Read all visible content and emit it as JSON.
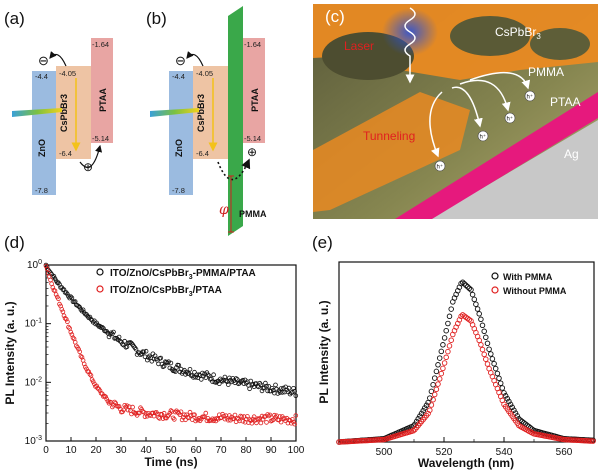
{
  "colors": {
    "zno": "#9bbbe0",
    "cspbbr3": "#eec4a4",
    "ptaa": "#e8a5a3",
    "pmma": "#3aa84a",
    "series_pmma": "#111111",
    "series_nopmma": "#e02020",
    "scene_orange": "#e98a22",
    "scene_pink": "#e6197d",
    "scene_gray": "#c8c8c8"
  },
  "panel_a": {
    "label": "(a)",
    "zno": {
      "name": "ZnO",
      "cb": "-4.4",
      "vb": "-7.8"
    },
    "cspbbr3": {
      "name": "CsPbBr3",
      "cb": "-4.05",
      "vb": "-6.4"
    },
    "ptaa": {
      "name": "PTAA",
      "cb": "-1.64",
      "vb": "-5.14"
    },
    "electron": "⊖",
    "hole": "⊕"
  },
  "panel_b": {
    "label": "(b)",
    "zno": {
      "name": "ZnO",
      "cb": "-4.4",
      "vb": "-7.8"
    },
    "cspbbr3": {
      "name": "CsPbBr3",
      "cb": "-4.05",
      "vb": "-6.4"
    },
    "ptaa": {
      "name": "PTAA",
      "cb": "-1.64",
      "vb": "-5.14"
    },
    "pmma": "PMMA",
    "barrier": "φ",
    "electron": "⊖",
    "hole": "⊕"
  },
  "panel_c": {
    "label": "(c)",
    "laser": "Laser",
    "cspbbr3": "CsPbBr",
    "cspbbr3_sub": "3",
    "pmma": "PMMA",
    "ptaa": "PTAA",
    "tunneling": "Tunneling",
    "ag": "Ag",
    "hole": "h⁺"
  },
  "chart_data": [
    {
      "panel": "(d)",
      "type": "scatter",
      "xlabel": "Time (ns)",
      "ylabel": "PL Intensity (a. u.)",
      "xlim": [
        0,
        100
      ],
      "ylim": [
        0.001,
        1.0
      ],
      "yscale": "log",
      "xticks": [
        "0",
        "10",
        "20",
        "30",
        "40",
        "50",
        "60",
        "70",
        "80",
        "90",
        "100"
      ],
      "yticks": [
        "10-3",
        "10-2",
        "10-1",
        "100"
      ],
      "legend_position": "top-right",
      "series": [
        {
          "name": "ITO/ZnO/CsPbBr3-PMMA/PTAA",
          "x": [
            0,
            2,
            5,
            10,
            15,
            20,
            30,
            40,
            50,
            60,
            70,
            80,
            90,
            100
          ],
          "y": [
            1.0,
            0.72,
            0.48,
            0.27,
            0.16,
            0.1,
            0.05,
            0.029,
            0.019,
            0.014,
            0.011,
            0.0092,
            0.0079,
            0.0068
          ]
        },
        {
          "name": "ITO/ZnO/CsPbBr3/PTAA",
          "x": [
            0,
            2,
            5,
            10,
            15,
            20,
            25,
            30,
            40,
            50,
            60,
            70,
            80,
            90,
            100
          ],
          "y": [
            1.0,
            0.52,
            0.25,
            0.072,
            0.022,
            0.0085,
            0.0047,
            0.0036,
            0.003,
            0.0028,
            0.0026,
            0.0025,
            0.0024,
            0.0024,
            0.0023
          ]
        }
      ]
    },
    {
      "panel": "(e)",
      "type": "scatter",
      "xlabel": "Wavelength (nm)",
      "ylabel": "PL Intensity (a. u.)",
      "xlim": [
        485,
        570
      ],
      "ylim": [
        0,
        1.1
      ],
      "xticks": [
        "500",
        "520",
        "540",
        "560"
      ],
      "legend_position": "top-right",
      "series": [
        {
          "name": "With PMMA",
          "x": [
            485,
            500,
            510,
            515,
            520,
            523,
            526,
            529,
            532,
            535,
            540,
            545,
            550,
            560,
            570
          ],
          "y": [
            0.0,
            0.02,
            0.1,
            0.25,
            0.62,
            0.86,
            0.98,
            0.93,
            0.77,
            0.57,
            0.3,
            0.14,
            0.07,
            0.02,
            0.01
          ]
        },
        {
          "name": "Without PMMA",
          "x": [
            485,
            500,
            510,
            515,
            520,
            523,
            526,
            529,
            532,
            535,
            540,
            545,
            550,
            560,
            570
          ],
          "y": [
            0.0,
            0.015,
            0.07,
            0.18,
            0.47,
            0.66,
            0.78,
            0.74,
            0.61,
            0.45,
            0.23,
            0.1,
            0.05,
            0.015,
            0.005
          ]
        }
      ]
    }
  ]
}
